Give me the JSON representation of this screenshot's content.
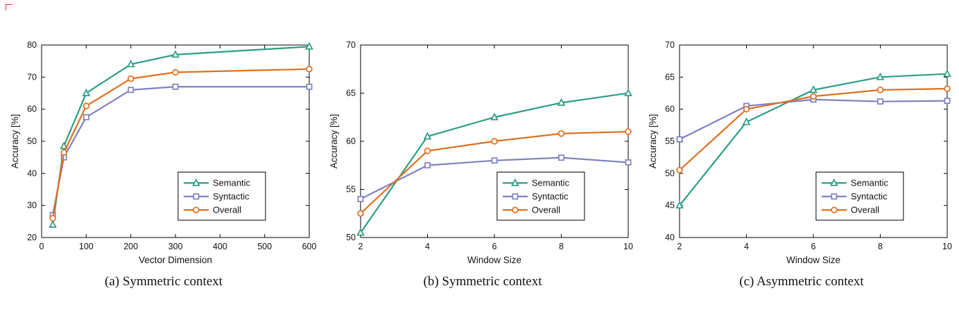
{
  "page": {
    "background": "#ffffff"
  },
  "artifact": {
    "color": "#e03030"
  },
  "colors": {
    "semantic": "#2a9d82",
    "syntactic": "#7d80bf",
    "overall": "#e06e1e"
  },
  "chart_data": [
    {
      "type": "line",
      "caption": "(a) Symmetric context",
      "xlabel": "Vector Dimension",
      "ylabel": "Accuracy [%]",
      "xlim": [
        0,
        600
      ],
      "ylim": [
        20,
        80
      ],
      "xticks": [
        0,
        100,
        200,
        300,
        400,
        500,
        600
      ],
      "yticks": [
        20,
        30,
        40,
        50,
        60,
        70,
        80
      ],
      "x": [
        25,
        50,
        100,
        200,
        300,
        600
      ],
      "grid": false,
      "legend": {
        "x": 0.51,
        "y": 0.66
      },
      "series": [
        {
          "name": "Semantic",
          "color": "semantic",
          "marker": "triangle",
          "values": [
            24,
            48.5,
            65,
            74,
            77,
            79.5
          ]
        },
        {
          "name": "Syntactic",
          "color": "syntactic",
          "marker": "square",
          "values": [
            27,
            45,
            57.5,
            66,
            67,
            67
          ]
        },
        {
          "name": "Overall",
          "color": "overall",
          "marker": "circle",
          "values": [
            26,
            46.5,
            61,
            69.5,
            71.5,
            72.5
          ]
        }
      ]
    },
    {
      "type": "line",
      "caption": "(b) Symmetric context",
      "xlabel": "Window Size",
      "ylabel": "Accuracy [%]",
      "xlim": [
        2,
        10
      ],
      "ylim": [
        50,
        70
      ],
      "xticks": [
        2,
        4,
        6,
        8,
        10
      ],
      "yticks": [
        50,
        55,
        60,
        65,
        70
      ],
      "x": [
        2,
        4,
        6,
        8,
        10
      ],
      "grid": false,
      "legend": {
        "x": 0.51,
        "y": 0.66
      },
      "series": [
        {
          "name": "Semantic",
          "color": "semantic",
          "marker": "triangle",
          "values": [
            50.5,
            60.5,
            62.5,
            64,
            65
          ]
        },
        {
          "name": "Syntactic",
          "color": "syntactic",
          "marker": "square",
          "values": [
            54,
            57.5,
            58,
            58.3,
            57.8
          ]
        },
        {
          "name": "Overall",
          "color": "overall",
          "marker": "circle",
          "values": [
            52.5,
            59,
            60,
            60.8,
            61
          ]
        }
      ]
    },
    {
      "type": "line",
      "caption": "(c) Asymmetric context",
      "xlabel": "Window Size",
      "ylabel": "Accuracy [%]",
      "xlim": [
        2,
        10
      ],
      "ylim": [
        40,
        70
      ],
      "xticks": [
        2,
        4,
        6,
        8,
        10
      ],
      "yticks": [
        40,
        45,
        50,
        55,
        60,
        65,
        70
      ],
      "x": [
        2,
        4,
        6,
        8,
        10
      ],
      "grid": false,
      "legend": {
        "x": 0.51,
        "y": 0.66
      },
      "series": [
        {
          "name": "Semantic",
          "color": "semantic",
          "marker": "triangle",
          "values": [
            45,
            58,
            63,
            65,
            65.5
          ]
        },
        {
          "name": "Syntactic",
          "color": "syntactic",
          "marker": "square",
          "values": [
            55.3,
            60.5,
            61.5,
            61.2,
            61.3
          ]
        },
        {
          "name": "Overall",
          "color": "overall",
          "marker": "circle",
          "values": [
            50.5,
            60,
            62,
            63,
            63.2
          ]
        }
      ]
    }
  ]
}
